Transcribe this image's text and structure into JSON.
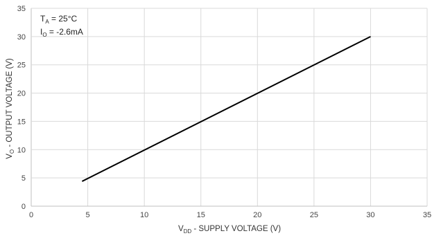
{
  "chart_data": {
    "type": "line",
    "xlabel": {
      "main": "V",
      "sub": "DD",
      "rest": " - SUPPLY VOLTAGE (V)"
    },
    "ylabel": {
      "main": "V",
      "sub": "O",
      "rest": " - OUTPUT VOLTAGE (V)"
    },
    "xlim": [
      0,
      35
    ],
    "ylim": [
      0,
      35
    ],
    "xticks": [
      0,
      5,
      10,
      15,
      20,
      25,
      30,
      35
    ],
    "yticks": [
      0,
      5,
      10,
      15,
      20,
      25,
      30,
      35
    ],
    "grid": true,
    "annotations": [
      {
        "main": "T",
        "sub": "A",
        "rest": " = 25°C"
      },
      {
        "main": "I",
        "sub": "O",
        "rest": " = -2.6mA"
      }
    ],
    "series": [
      {
        "color": "#000000",
        "x": [
          4.5,
          30
        ],
        "y": [
          4.4,
          30
        ]
      }
    ]
  }
}
